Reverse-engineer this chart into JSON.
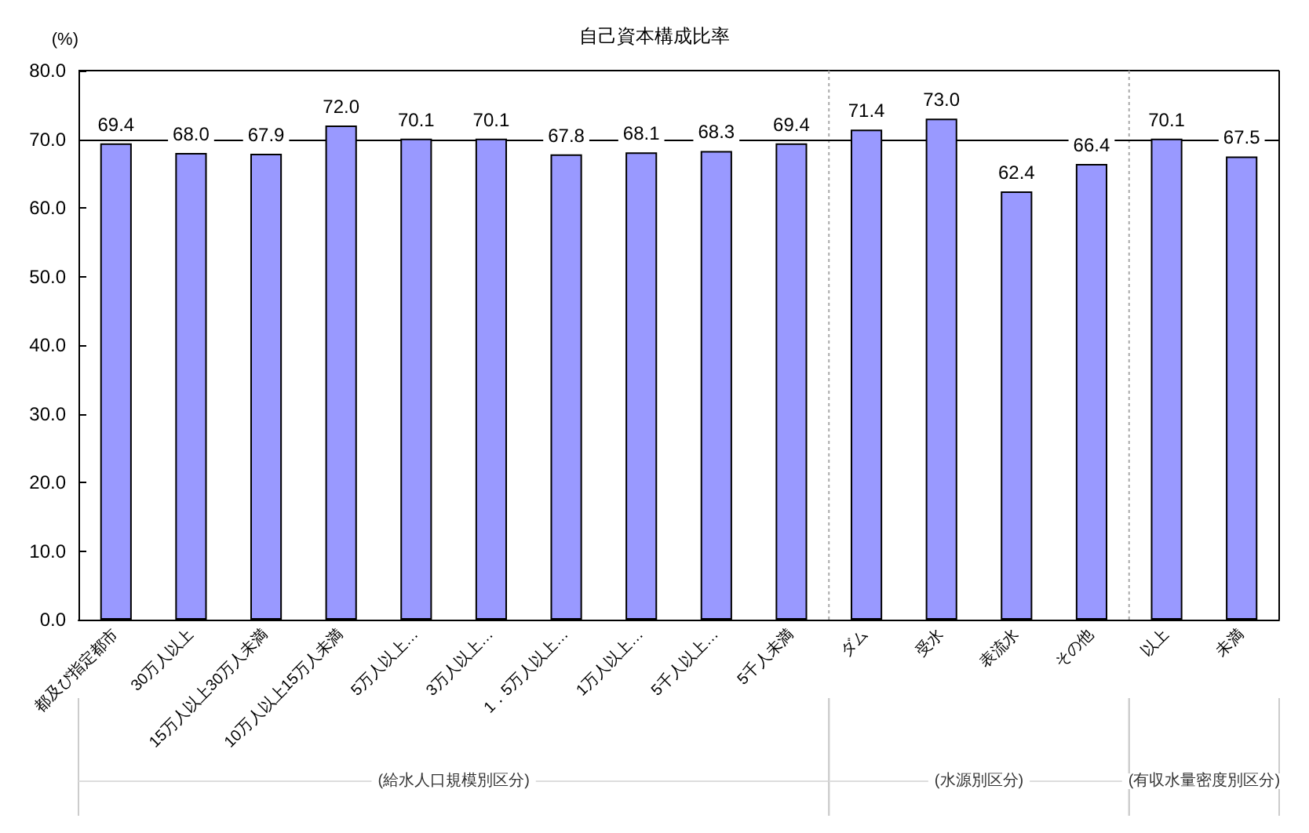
{
  "chart_data": {
    "type": "bar",
    "title": "自己資本構成比率",
    "ylabel": "(%)",
    "categories": [
      "都及び指定都市",
      "30万人以上",
      "15万人以上30万人未満",
      "10万人以上15万人未満",
      "5万人以上…",
      "3万人以上…",
      "1．5万人以上…",
      "1万人以上…",
      "5千人以上…",
      "5千人未満",
      "ダム",
      "受水",
      "表流水",
      "その他",
      "以上",
      "未満"
    ],
    "values": [
      69.4,
      68.0,
      67.9,
      72.0,
      70.1,
      70.1,
      67.8,
      68.1,
      68.3,
      69.4,
      71.4,
      73.0,
      62.4,
      66.4,
      70.1,
      67.5
    ],
    "value_labels": [
      "69.4",
      "68.0",
      "67.9",
      "72.0",
      "70.1",
      "70.1",
      "67.8",
      "68.1",
      "68.3",
      "69.4",
      "71.4",
      "73.0",
      "62.4",
      "66.4",
      "70.1",
      "67.5"
    ],
    "color": "#9999ff",
    "ylim": [
      0,
      80
    ],
    "yticks": [
      {
        "value": 0,
        "label": "0.0"
      },
      {
        "value": 10,
        "label": "10.0"
      },
      {
        "value": 20,
        "label": "20.0"
      },
      {
        "value": 30,
        "label": "30.0"
      },
      {
        "value": 40,
        "label": "40.0"
      },
      {
        "value": 50,
        "label": "50.0"
      },
      {
        "value": 60,
        "label": "60.0"
      },
      {
        "value": 70,
        "label": "70.0"
      },
      {
        "value": 80,
        "label": "80.0"
      }
    ],
    "ref_lines": [
      {
        "axis": "y",
        "value": 70,
        "color": "#000000"
      }
    ],
    "annotations": [
      "(給水人口規模別区分)",
      "(水源別区分)",
      "(有収水量密度別区分)"
    ]
  }
}
